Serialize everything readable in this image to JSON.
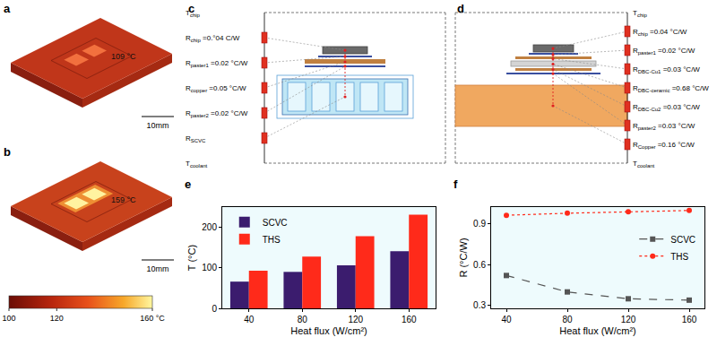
{
  "panels": {
    "a": {
      "label": "a",
      "annotation": "109 °C",
      "scale_bar": "10mm"
    },
    "b": {
      "label": "b",
      "annotation": "159 °C",
      "scale_bar": "10mm"
    },
    "colorbar": {
      "range": [
        100,
        160
      ],
      "ticks": [
        100,
        120,
        {
          "value": 160,
          "label": "160 °C"
        }
      ]
    },
    "c": {
      "label": "c",
      "nodes": [
        {
          "sym": "T",
          "sub": "chip"
        },
        {
          "sym": "R",
          "sub": "chip",
          "value": "=0.°04 C/W"
        },
        {
          "sym": "R",
          "sub": "paster1",
          "value": "=0.02 °C/W"
        },
        {
          "sym": "R",
          "sub": "copper",
          "value": "=0.05 °C/W"
        },
        {
          "sym": "R",
          "sub": "paster2",
          "value": "=0.02 °C/W"
        },
        {
          "sym": "R",
          "sub": "SCVC"
        },
        {
          "sym": "T",
          "sub": "coolant"
        }
      ]
    },
    "d": {
      "label": "d",
      "nodes": [
        {
          "sym": "T",
          "sub": "chip"
        },
        {
          "sym": "R",
          "sub": "chip",
          "value": "=0.04 °C/W"
        },
        {
          "sym": "R",
          "sub": "paster1",
          "value": "=0.02 °C/W"
        },
        {
          "sym": "R",
          "sub": "DBC-Cu1",
          "value": "=0.03 °C/W"
        },
        {
          "sym": "R",
          "sub": "DBC-ceramic",
          "value": "=0.68 °C/W"
        },
        {
          "sym": "R",
          "sub": "DBC-Cu2",
          "value": "=0.03 °C/W"
        },
        {
          "sym": "R",
          "sub": "paster2",
          "value": "=0.03 °C/W"
        },
        {
          "sym": "R",
          "sub": "Copper",
          "value": "=0.16 °C/W"
        },
        {
          "sym": "T",
          "sub": "coolant"
        }
      ]
    },
    "e": {
      "label": "e"
    },
    "f": {
      "label": "f"
    }
  },
  "chart_data": [
    {
      "type": "bar",
      "categories": [
        "40",
        "80",
        "120",
        "160"
      ],
      "series": [
        {
          "name": "SCVC",
          "color": "#3b1c6e",
          "values": [
            66,
            90,
            106,
            141
          ]
        },
        {
          "name": "THS",
          "color": "#ff2a1a",
          "values": [
            93,
            128,
            178,
            231
          ]
        }
      ],
      "x_label": "Heat flux (W/cm²)",
      "y_label": "T (°C)",
      "ylim": [
        0,
        250
      ],
      "yticks": [
        0,
        100,
        200
      ],
      "grid": false,
      "legend": "upper left"
    },
    {
      "type": "line",
      "x": [
        40,
        80,
        120,
        160
      ],
      "series": [
        {
          "name": "SCVC",
          "color": "#555555",
          "marker": "square",
          "line_style": "dash",
          "values": [
            0.52,
            0.4,
            0.35,
            0.34
          ]
        },
        {
          "name": "THS",
          "color": "#ff2a1a",
          "marker": "circle",
          "line_style": "dot",
          "values": [
            0.96,
            0.975,
            0.985,
            0.995
          ]
        }
      ],
      "x_label": "Heat flux (W/cm²)",
      "y_label": "R (°C/W)",
      "xlim": [
        30,
        170
      ],
      "xticks": [
        40,
        80,
        120,
        160
      ],
      "ylim": [
        0.28,
        1.02
      ],
      "yticks": [
        0.3,
        0.6,
        0.9
      ],
      "grid": false,
      "legend": "right"
    }
  ]
}
